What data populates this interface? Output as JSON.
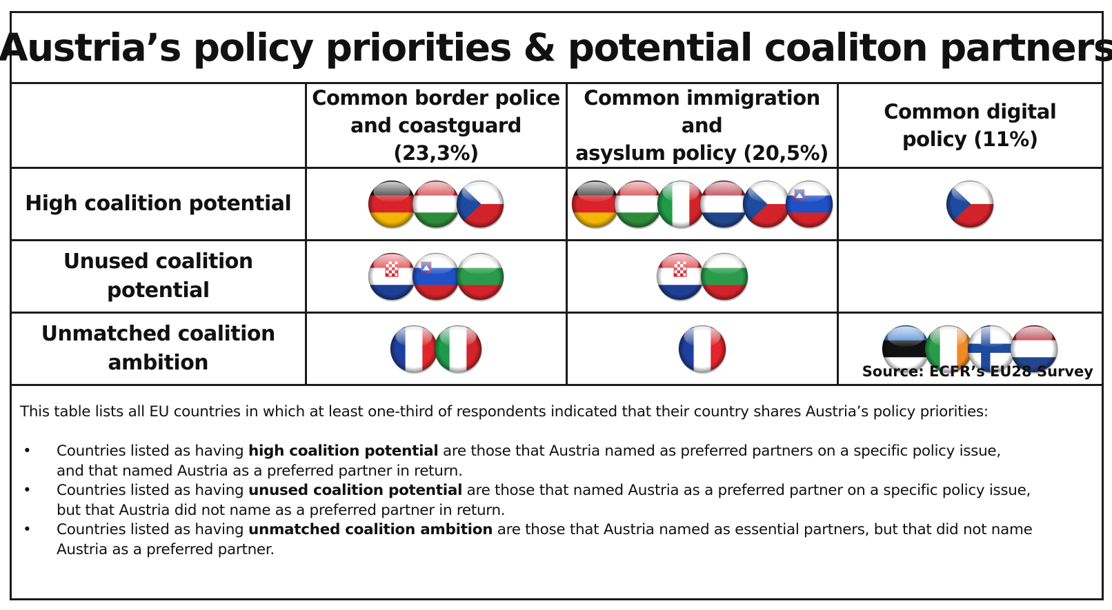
{
  "title": "Austria’s policy priorities & potential coaliton partners",
  "columns": [
    {
      "label_line1": "Common border police",
      "label_line2": "and coastguard (23,3%)"
    },
    {
      "label_line1": "Common immigration and",
      "label_line2": "asyslum policy (20,5%)"
    },
    {
      "label_line1": "Common digital",
      "label_line2": "policy (11%)"
    }
  ],
  "rows": [
    {
      "label_line1": "High coalition potential",
      "label_line2": "",
      "cells": [
        [
          "Germany",
          "Hungary",
          "Czech Republic"
        ],
        [
          "Germany",
          "Hungary",
          "Italy",
          "Netherlands",
          "Czech Republic",
          "Slovenia"
        ],
        [
          "Czech Republic"
        ]
      ]
    },
    {
      "label_line1": "Unused coalition potential",
      "label_line2": "",
      "cells": [
        [
          "Croatia",
          "Slovenia",
          "Bulgaria"
        ],
        [
          "Croatia",
          "Bulgaria"
        ],
        []
      ]
    },
    {
      "label_line1": "Unmatched coalition",
      "label_line2": "ambition",
      "cells": [
        [
          "France",
          "Italy"
        ],
        [
          "France"
        ],
        [
          "Estonia",
          "Ireland",
          "Finland",
          "Netherlands"
        ]
      ]
    }
  ],
  "source": "Source: ECFR’s EU28 Survey",
  "intro": "This table lists all EU countries in which at least one-third of respondents indicated that their country shares Austria’s policy priorities:",
  "bullets": [
    {
      "before": "Countries listed as having ",
      "bold": "high coalition potential",
      "after_line1": " are those that Austria named as preferred partners on a specific policy issue,",
      "line2": "and that named Austria as a preferred partner in return."
    },
    {
      "before": "Countries listed as having ",
      "bold": "unused coalition potential",
      "after_line1": " are those that named Austria as a preferred partner on a specific policy issue,",
      "line2": "but that Austria did not name as a preferred partner in return."
    },
    {
      "before": "Countries listed as having ",
      "bold": "unmatched coalition ambition",
      "after_line1": " are those that Austria named as essential partners, but that did not name",
      "line2": "Austria as a preferred partner."
    }
  ],
  "bullet_char": "•",
  "flag_colors": {
    "Germany": [
      "#1a1a1a",
      "#d8232a",
      "#f2b705"
    ],
    "Hungary": [
      "#d2232a",
      "#ffffff",
      "#2e8b3a"
    ],
    "Bulgaria": [
      "#ffffff",
      "#2a9b4a",
      "#d2232a"
    ],
    "Netherlands": [
      "#ae1c28",
      "#ffffff",
      "#21468b"
    ],
    "Estonia": [
      "#3a7fd5",
      "#111111",
      "#ffffff"
    ],
    "Slovenia": [
      "#ffffff",
      "#1e50c8",
      "#d2232a"
    ],
    "Croatia": [
      "#e0252c",
      "#ffffff",
      "#1e3f94"
    ],
    "Italy": [
      "#1f9a48",
      "#ffffff",
      "#d2232a"
    ],
    "France": [
      "#1f3f9e",
      "#ffffff",
      "#e0252c"
    ],
    "Ireland": [
      "#2a9b4a",
      "#ffffff",
      "#f08a24"
    ],
    "Czech Republic": [
      "#ffffff",
      "#d2232a",
      "#1f4b9e"
    ],
    "Finland": [
      "#ffffff",
      "#1f4b9e"
    ]
  }
}
